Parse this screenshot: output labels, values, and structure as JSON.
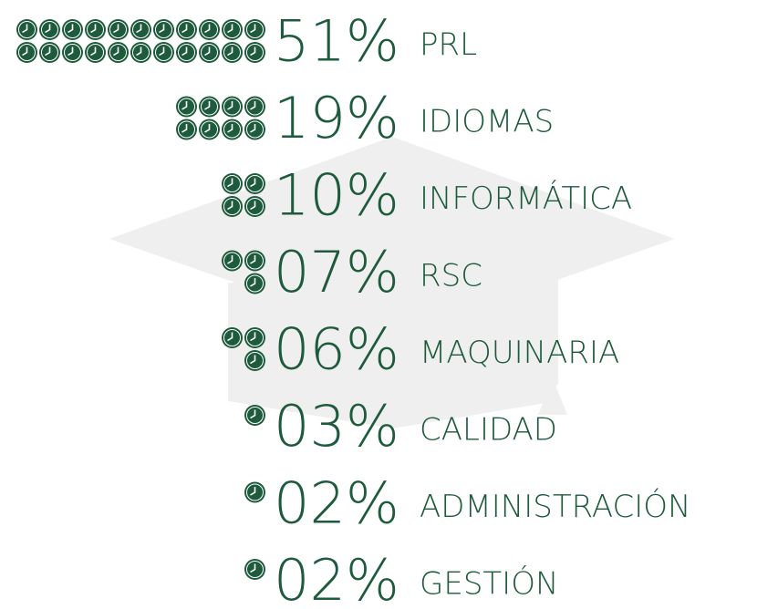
{
  "chart_data": {
    "type": "pictogram",
    "categories": [
      "PRL",
      "IDIOMAS",
      "INFORMÁTICA",
      "RSC",
      "MAQUINARIA",
      "CALIDAD",
      "ADMINISTRACIÓN",
      "GESTIÓN"
    ],
    "values": [
      51,
      19,
      10,
      7,
      6,
      3,
      2,
      2
    ],
    "value_labels": [
      "51%",
      "19%",
      "10%",
      "07%",
      "06%",
      "03%",
      "02%",
      "02%"
    ],
    "color": "#1e5a3c"
  }
}
